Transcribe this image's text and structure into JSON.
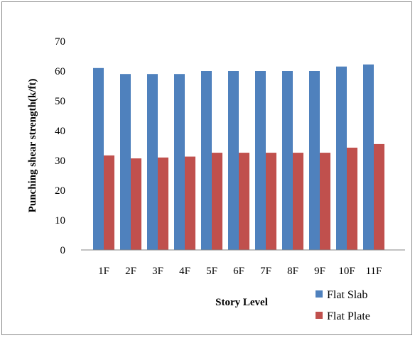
{
  "chart_data": {
    "type": "bar",
    "categories": [
      "1F",
      "2F",
      "3F",
      "4F",
      "5F",
      "6F",
      "7F",
      "8F",
      "9F",
      "10F",
      "11F"
    ],
    "series": [
      {
        "name": "Flat Slab",
        "color": "#4F81BD",
        "values": [
          61,
          59,
          59,
          59,
          60,
          60,
          60,
          60,
          60,
          61.5,
          62.2
        ]
      },
      {
        "name": "Flat Plate",
        "color": "#C0504D",
        "values": [
          31.7,
          30.7,
          31,
          31.3,
          32.6,
          32.6,
          32.6,
          32.6,
          32.6,
          34.3,
          35.5
        ]
      }
    ],
    "xlabel": "Story Level",
    "ylabel": "Punching shear strength(k/ft)",
    "ylim": [
      0,
      70
    ],
    "yticks": [
      "0",
      "10",
      "20",
      "30",
      "40",
      "50",
      "60",
      "70"
    ],
    "grid": false,
    "legend": "bottom-right"
  }
}
